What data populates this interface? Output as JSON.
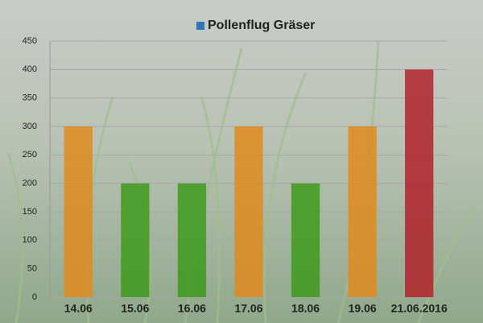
{
  "chart_data": {
    "type": "bar",
    "categories": [
      "14.06",
      "15.06",
      "16.06",
      "17.06",
      "18.06",
      "19.06",
      "21.06.2016"
    ],
    "series": [
      {
        "name": "Pollenflug Gräser",
        "color": "#2e75b6",
        "values": [
          300,
          200,
          200,
          300,
          200,
          300,
          400
        ],
        "bar_colors": [
          "#e08a1c",
          "#3f9a1c",
          "#3f9a1c",
          "#e08a1c",
          "#3f9a1c",
          "#e08a1c",
          "#b1222c"
        ]
      }
    ],
    "ylim": [
      0,
      450
    ],
    "yticks": [
      0,
      50,
      100,
      150,
      200,
      250,
      300,
      350,
      400,
      450
    ],
    "grid": true
  }
}
